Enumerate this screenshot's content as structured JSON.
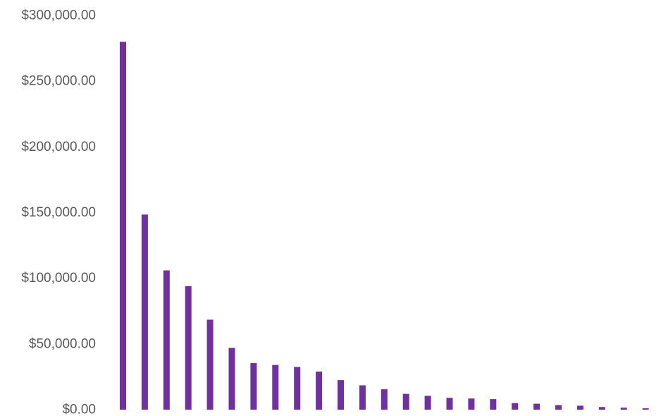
{
  "chart_data": {
    "type": "bar",
    "title": "",
    "xlabel": "",
    "ylabel": "",
    "ylim": [
      0,
      300000
    ],
    "yticks": [
      {
        "value": 300000,
        "label": "$300,000.00"
      },
      {
        "value": 250000,
        "label": "$250,000.00"
      },
      {
        "value": 200000,
        "label": "$200,000.00"
      },
      {
        "value": 150000,
        "label": "$150,000.00"
      },
      {
        "value": 100000,
        "label": "$100,000.00"
      },
      {
        "value": 50000,
        "label": "$50,000.00"
      },
      {
        "value": 0,
        "label": "$0.00"
      }
    ],
    "grid": false,
    "legend": "none",
    "bar_color": "#7030A0",
    "values": [
      280000,
      148500,
      106000,
      94000,
      68500,
      47000,
      35500,
      34000,
      32500,
      29000,
      22500,
      18500,
      15500,
      12000,
      10500,
      9000,
      8500,
      8000,
      5000,
      4500,
      3500,
      3000,
      2000,
      1500,
      1000
    ]
  }
}
